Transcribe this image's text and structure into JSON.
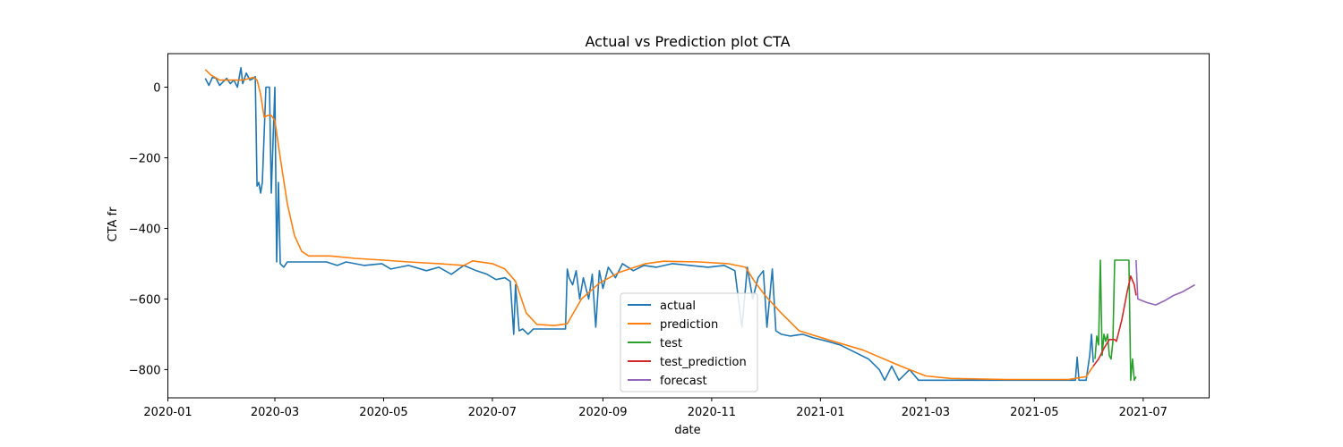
{
  "chart_data": {
    "type": "line",
    "title": "Actual vs Prediction plot CTA",
    "xlabel": "date",
    "ylabel": "CTA fr",
    "x_ticks": [
      "2020-01",
      "2020-03",
      "2020-05",
      "2020-07",
      "2020-09",
      "2020-11",
      "2021-01",
      "2021-03",
      "2021-05",
      "2021-07"
    ],
    "y_ticks": [
      0,
      -200,
      -400,
      -600,
      -800
    ],
    "xlim": [
      "2020-01-01",
      "2021-08-07"
    ],
    "ylim": [
      -880,
      95
    ],
    "grid": false,
    "legend_position": "bottom-center",
    "series": [
      {
        "name": "actual",
        "color": "#1f77b4",
        "points": [
          [
            "2020-01-22",
            25
          ],
          [
            "2020-01-24",
            5
          ],
          [
            "2020-01-26",
            28
          ],
          [
            "2020-01-28",
            25
          ],
          [
            "2020-01-30",
            5
          ],
          [
            "2020-02-01",
            15
          ],
          [
            "2020-02-03",
            25
          ],
          [
            "2020-02-05",
            10
          ],
          [
            "2020-02-07",
            20
          ],
          [
            "2020-02-09",
            0
          ],
          [
            "2020-02-11",
            55
          ],
          [
            "2020-02-12",
            10
          ],
          [
            "2020-02-14",
            40
          ],
          [
            "2020-02-16",
            20
          ],
          [
            "2020-02-18",
            25
          ],
          [
            "2020-02-19",
            30
          ],
          [
            "2020-02-20",
            -280
          ],
          [
            "2020-02-21",
            -270
          ],
          [
            "2020-02-22",
            -300
          ],
          [
            "2020-02-23",
            -270
          ],
          [
            "2020-02-25",
            0
          ],
          [
            "2020-02-27",
            0
          ],
          [
            "2020-02-28",
            -300
          ],
          [
            "2020-03-01",
            0
          ],
          [
            "2020-03-02",
            -495
          ],
          [
            "2020-03-03",
            -270
          ],
          [
            "2020-03-04",
            -500
          ],
          [
            "2020-03-06",
            -510
          ],
          [
            "2020-03-08",
            -495
          ],
          [
            "2020-03-12",
            -495
          ],
          [
            "2020-03-20",
            -495
          ],
          [
            "2020-03-30",
            -495
          ],
          [
            "2020-04-05",
            -505
          ],
          [
            "2020-04-10",
            -495
          ],
          [
            "2020-04-20",
            -505
          ],
          [
            "2020-04-30",
            -500
          ],
          [
            "2020-05-05",
            -515
          ],
          [
            "2020-05-15",
            -505
          ],
          [
            "2020-05-25",
            -520
          ],
          [
            "2020-06-01",
            -510
          ],
          [
            "2020-06-08",
            -530
          ],
          [
            "2020-06-15",
            -505
          ],
          [
            "2020-06-22",
            -520
          ],
          [
            "2020-06-28",
            -530
          ],
          [
            "2020-07-03",
            -545
          ],
          [
            "2020-07-08",
            -540
          ],
          [
            "2020-07-11",
            -550
          ],
          [
            "2020-07-13",
            -700
          ],
          [
            "2020-07-14",
            -560
          ],
          [
            "2020-07-16",
            -690
          ],
          [
            "2020-07-18",
            -685
          ],
          [
            "2020-07-21",
            -700
          ],
          [
            "2020-07-24",
            -685
          ],
          [
            "2020-08-01",
            -685
          ],
          [
            "2020-08-11",
            -685
          ],
          [
            "2020-08-12",
            -515
          ],
          [
            "2020-08-13",
            -540
          ],
          [
            "2020-08-15",
            -560
          ],
          [
            "2020-08-17",
            -520
          ],
          [
            "2020-08-19",
            -600
          ],
          [
            "2020-08-21",
            -540
          ],
          [
            "2020-08-24",
            -600
          ],
          [
            "2020-08-26",
            -530
          ],
          [
            "2020-08-28",
            -680
          ],
          [
            "2020-08-30",
            -520
          ],
          [
            "2020-09-01",
            -570
          ],
          [
            "2020-09-04",
            -510
          ],
          [
            "2020-09-08",
            -540
          ],
          [
            "2020-09-12",
            -500
          ],
          [
            "2020-09-18",
            -520
          ],
          [
            "2020-09-24",
            -505
          ],
          [
            "2020-10-01",
            -510
          ],
          [
            "2020-10-10",
            -500
          ],
          [
            "2020-10-20",
            -505
          ],
          [
            "2020-10-30",
            -510
          ],
          [
            "2020-11-08",
            -505
          ],
          [
            "2020-11-14",
            -520
          ],
          [
            "2020-11-18",
            -680
          ],
          [
            "2020-11-21",
            -510
          ],
          [
            "2020-11-24",
            -600
          ],
          [
            "2020-11-27",
            -540
          ],
          [
            "2020-11-30",
            -520
          ],
          [
            "2020-12-02",
            -680
          ],
          [
            "2020-12-05",
            -515
          ],
          [
            "2020-12-07",
            -690
          ],
          [
            "2020-12-10",
            -700
          ],
          [
            "2020-12-15",
            -705
          ],
          [
            "2020-12-22",
            -700
          ],
          [
            "2020-12-28",
            -710
          ],
          [
            "2021-01-05",
            -720
          ],
          [
            "2021-01-12",
            -730
          ],
          [
            "2021-01-20",
            -750
          ],
          [
            "2021-01-28",
            -770
          ],
          [
            "2021-02-03",
            -800
          ],
          [
            "2021-02-06",
            -830
          ],
          [
            "2021-02-10",
            -790
          ],
          [
            "2021-02-14",
            -830
          ],
          [
            "2021-02-20",
            -800
          ],
          [
            "2021-02-25",
            -830
          ],
          [
            "2021-03-05",
            -830
          ],
          [
            "2021-04-01",
            -830
          ],
          [
            "2021-05-01",
            -830
          ],
          [
            "2021-05-24",
            -830
          ],
          [
            "2021-05-25",
            -765
          ],
          [
            "2021-05-26",
            -830
          ],
          [
            "2021-05-30",
            -830
          ],
          [
            "2021-06-01",
            -760
          ],
          [
            "2021-06-02",
            -700
          ],
          [
            "2021-06-03",
            -780
          ]
        ]
      },
      {
        "name": "prediction",
        "color": "#ff7f0e",
        "points": [
          [
            "2020-01-22",
            50
          ],
          [
            "2020-01-25",
            35
          ],
          [
            "2020-01-30",
            20
          ],
          [
            "2020-02-05",
            20
          ],
          [
            "2020-02-12",
            20
          ],
          [
            "2020-02-18",
            28
          ],
          [
            "2020-02-20",
            20
          ],
          [
            "2020-02-22",
            -20
          ],
          [
            "2020-02-24",
            -85
          ],
          [
            "2020-02-26",
            -80
          ],
          [
            "2020-02-28",
            -80
          ],
          [
            "2020-03-01",
            -95
          ],
          [
            "2020-03-04",
            -200
          ],
          [
            "2020-03-08",
            -330
          ],
          [
            "2020-03-12",
            -420
          ],
          [
            "2020-03-16",
            -465
          ],
          [
            "2020-03-20",
            -478
          ],
          [
            "2020-04-01",
            -478
          ],
          [
            "2020-04-15",
            -485
          ],
          [
            "2020-05-01",
            -490
          ],
          [
            "2020-05-15",
            -495
          ],
          [
            "2020-06-01",
            -500
          ],
          [
            "2020-06-15",
            -505
          ],
          [
            "2020-06-20",
            -492
          ],
          [
            "2020-07-01",
            -500
          ],
          [
            "2020-07-08",
            -515
          ],
          [
            "2020-07-14",
            -550
          ],
          [
            "2020-07-20",
            -640
          ],
          [
            "2020-07-26",
            -672
          ],
          [
            "2020-08-05",
            -675
          ],
          [
            "2020-08-12",
            -670
          ],
          [
            "2020-08-20",
            -600
          ],
          [
            "2020-08-30",
            -555
          ],
          [
            "2020-09-10",
            -525
          ],
          [
            "2020-09-25",
            -500
          ],
          [
            "2020-10-05",
            -493
          ],
          [
            "2020-10-25",
            -495
          ],
          [
            "2020-11-10",
            -500
          ],
          [
            "2020-11-20",
            -510
          ],
          [
            "2020-11-25",
            -550
          ],
          [
            "2020-12-01",
            -590
          ],
          [
            "2020-12-10",
            -640
          ],
          [
            "2020-12-20",
            -690
          ],
          [
            "2021-01-05",
            -715
          ],
          [
            "2021-01-25",
            -745
          ],
          [
            "2021-02-15",
            -790
          ],
          [
            "2021-03-01",
            -818
          ],
          [
            "2021-03-15",
            -825
          ],
          [
            "2021-04-15",
            -828
          ],
          [
            "2021-05-20",
            -828
          ],
          [
            "2021-05-30",
            -820
          ],
          [
            "2021-06-03",
            -790
          ]
        ]
      },
      {
        "name": "test",
        "color": "#2ca02c",
        "points": [
          [
            "2021-06-04",
            -770
          ],
          [
            "2021-06-05",
            -705
          ],
          [
            "2021-06-06",
            -730
          ],
          [
            "2021-06-07",
            -490
          ],
          [
            "2021-06-08",
            -760
          ],
          [
            "2021-06-09",
            -700
          ],
          [
            "2021-06-10",
            -720
          ],
          [
            "2021-06-11",
            -700
          ],
          [
            "2021-06-12",
            -760
          ],
          [
            "2021-06-13",
            -770
          ],
          [
            "2021-06-14",
            -720
          ],
          [
            "2021-06-15",
            -490
          ],
          [
            "2021-06-21",
            -490
          ],
          [
            "2021-06-23",
            -490
          ],
          [
            "2021-06-24",
            -830
          ],
          [
            "2021-06-25",
            -770
          ],
          [
            "2021-06-26",
            -830
          ],
          [
            "2021-06-27",
            -820
          ]
        ]
      },
      {
        "name": "test_prediction",
        "color": "#d62728",
        "points": [
          [
            "2021-06-03",
            -790
          ],
          [
            "2021-06-06",
            -770
          ],
          [
            "2021-06-09",
            -740
          ],
          [
            "2021-06-12",
            -715
          ],
          [
            "2021-06-15",
            -715
          ],
          [
            "2021-06-16",
            -720
          ],
          [
            "2021-06-19",
            -660
          ],
          [
            "2021-06-22",
            -580
          ],
          [
            "2021-06-24",
            -535
          ],
          [
            "2021-06-26",
            -560
          ],
          [
            "2021-06-27",
            -590
          ]
        ]
      },
      {
        "name": "forecast",
        "color": "#9467bd",
        "points": [
          [
            "2021-06-27",
            -490
          ],
          [
            "2021-06-28",
            -600
          ],
          [
            "2021-07-03",
            -610
          ],
          [
            "2021-07-08",
            -617
          ],
          [
            "2021-07-13",
            -605
          ],
          [
            "2021-07-18",
            -590
          ],
          [
            "2021-07-23",
            -580
          ],
          [
            "2021-07-30",
            -560
          ]
        ]
      }
    ]
  }
}
